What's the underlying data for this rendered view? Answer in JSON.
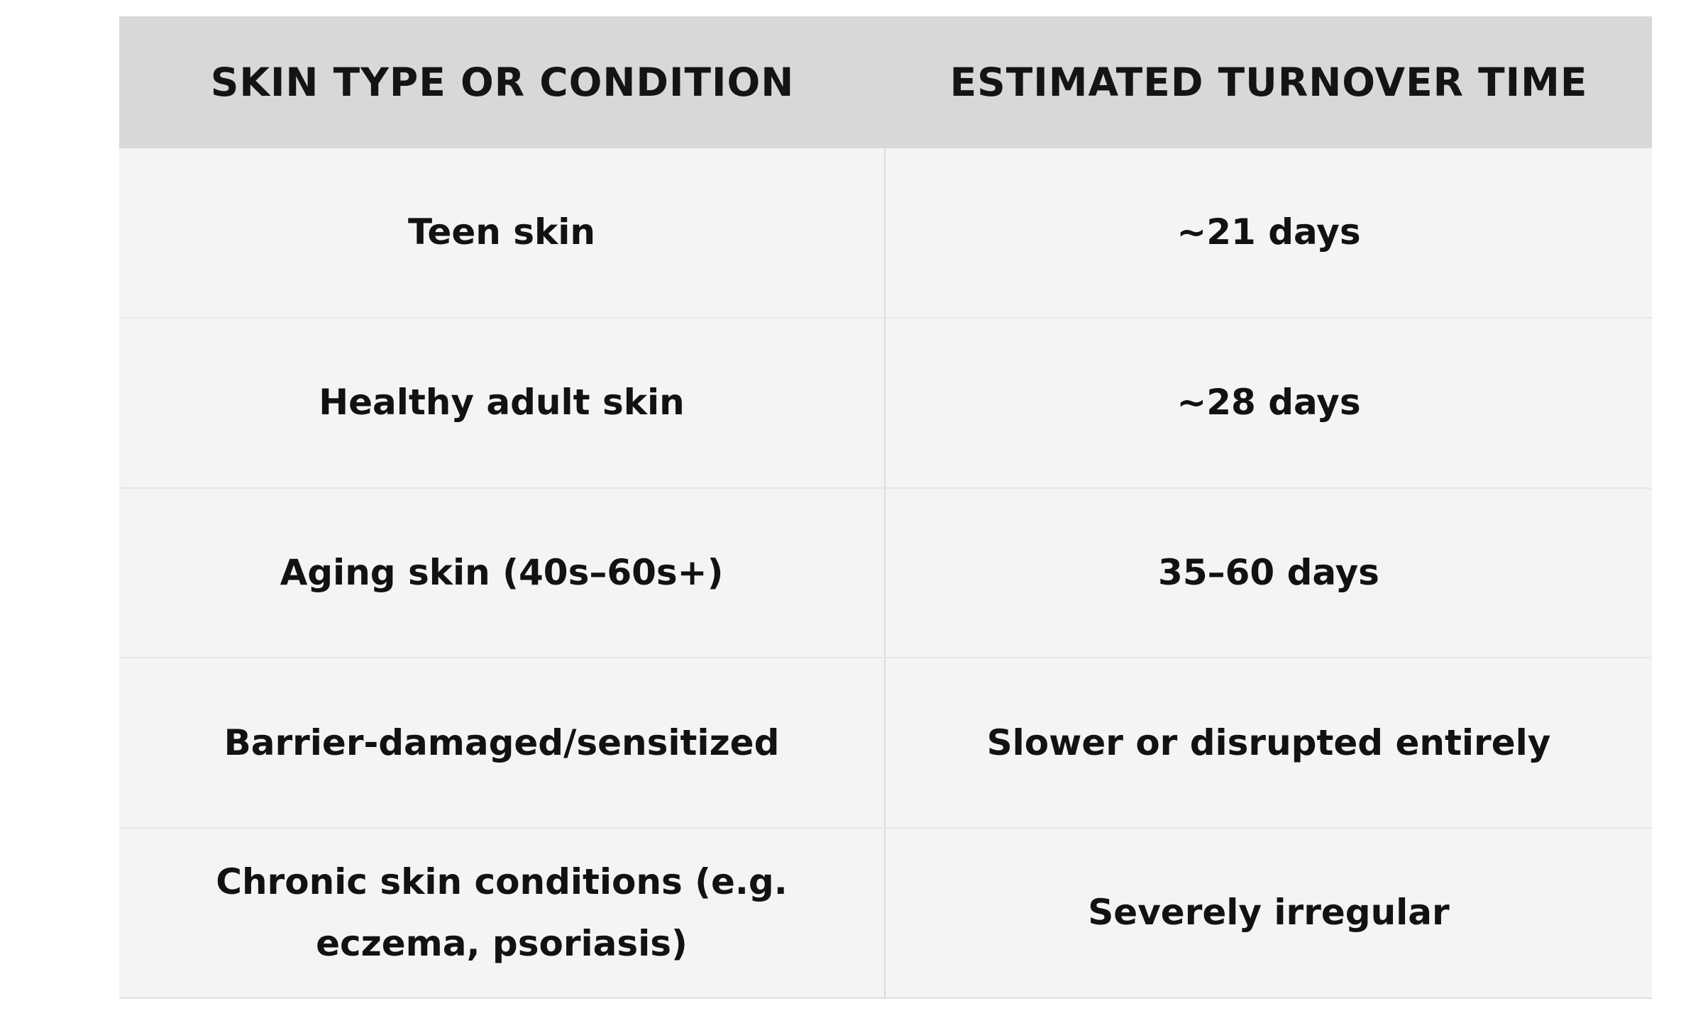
{
  "table": {
    "headers": [
      "SKIN TYPE OR CONDITION",
      "ESTIMATED TURNOVER TIME"
    ],
    "rows": [
      {
        "condition": "Teen skin",
        "turnover": "~21 days"
      },
      {
        "condition": "Healthy adult skin",
        "turnover": "~28 days"
      },
      {
        "condition": "Aging skin (40s–60s+)",
        "turnover": "35–60 days"
      },
      {
        "condition": "Barrier-damaged/sensitized",
        "turnover": "Slower or disrupted entirely"
      },
      {
        "condition": "Chronic skin conditions (e.g. eczema, psoriasis)",
        "turnover": "Severely irregular"
      }
    ]
  },
  "colors": {
    "page_background": "#ffffff",
    "header_background": "#d9d8d9",
    "row_background": "#f4f3f5",
    "divider": "#e0dfe2",
    "text": "#121212"
  },
  "chart_data": {
    "type": "table",
    "title": "",
    "columns": [
      "SKIN TYPE OR CONDITION",
      "ESTIMATED TURNOVER TIME"
    ],
    "rows": [
      [
        "Teen skin",
        "~21 days"
      ],
      [
        "Healthy adult skin",
        "~28 days"
      ],
      [
        "Aging skin (40s–60s+)",
        "35–60 days"
      ],
      [
        "Barrier-damaged/sensitized",
        "Slower or disrupted entirely"
      ],
      [
        "Chronic skin conditions (e.g. eczema, psoriasis)",
        "Severely irregular"
      ]
    ]
  }
}
